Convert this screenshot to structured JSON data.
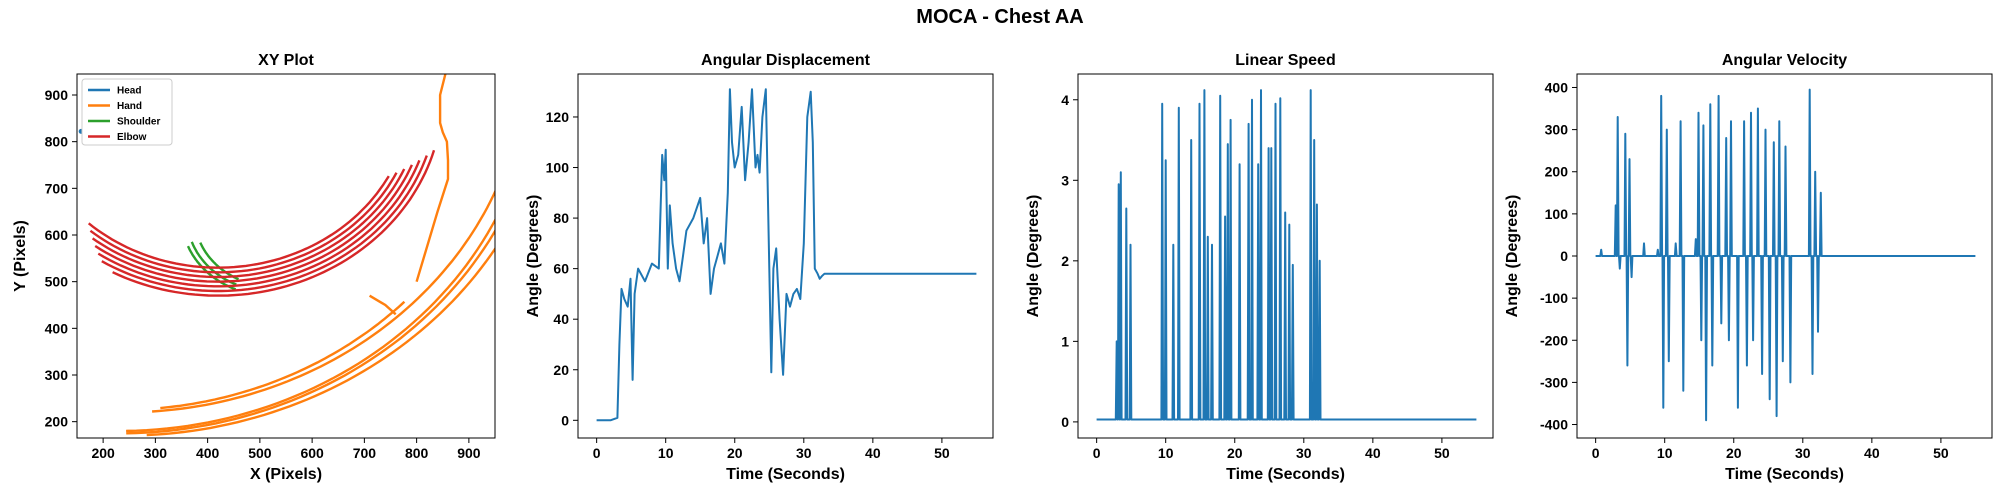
{
  "figure_title": "MOCA - Chest AA",
  "colors": {
    "Head": "#1f77b4",
    "Hand": "#ff7f0e",
    "Shoulder": "#2ca02c",
    "Elbow": "#d62728"
  },
  "chart_data": [
    {
      "type": "scatter",
      "title": "XY Plot",
      "xlabel": "X (Pixels)",
      "ylabel": "Y (Pixels)",
      "xlim": [
        150,
        950
      ],
      "ylim": [
        165,
        945
      ],
      "xticks": [
        200,
        300,
        400,
        500,
        600,
        700,
        800,
        900
      ],
      "yticks": [
        200,
        300,
        400,
        500,
        600,
        700,
        800,
        900
      ],
      "legend_position": "upper-left",
      "series": [
        {
          "name": "Head",
          "points": [
            [
              158,
              822
            ],
            [
              164,
              823
            ]
          ]
        },
        {
          "name": "Hand",
          "arcs": [
            {
              "cx": 230,
              "cy": 980,
              "r": 800,
              "a0": 89,
              "a1": 4
            },
            {
              "cx": 230,
              "cy": 990,
              "r": 815,
              "a0": 89,
              "a1": 8
            },
            {
              "cx": 240,
              "cy": 1000,
              "r": 830,
              "a0": 87,
              "a1": 14
            },
            {
              "cx": 240,
              "cy": 990,
              "r": 770,
              "a0": 86,
              "a1": 20
            },
            {
              "cx": 230,
              "cy": 985,
              "r": 760,
              "a0": 84,
              "a1": 44
            }
          ],
          "extra": [
            [
              [
                855,
                945
              ],
              [
                845,
                900
              ],
              [
                845,
                840
              ],
              [
                850,
                820
              ],
              [
                858,
                800
              ],
              [
                860,
                760
              ],
              [
                860,
                720
              ],
              [
                840,
                650
              ],
              [
                800,
                500
              ]
            ],
            [
              [
                710,
                470
              ],
              [
                740,
                450
              ],
              [
                760,
                430
              ]
            ]
          ]
        },
        {
          "name": "Shoulder",
          "arcs": [
            {
              "cx": 520,
              "cy": 640,
              "r": 170,
              "a0": 158,
              "a1": 113
            },
            {
              "cx": 520,
              "cy": 640,
              "r": 160,
              "a0": 160,
              "a1": 114
            },
            {
              "cx": 525,
              "cy": 640,
              "r": 150,
              "a0": 158,
              "a1": 116
            }
          ]
        },
        {
          "name": "Elbow",
          "arcs": [
            {
              "cx": 420,
              "cy": 900,
              "r": 430,
              "a0": 118,
              "a1": 16
            },
            {
              "cx": 420,
              "cy": 900,
              "r": 420,
              "a0": 122,
              "a1": 18
            },
            {
              "cx": 420,
              "cy": 900,
              "r": 410,
              "a0": 124,
              "a1": 20
            },
            {
              "cx": 420,
              "cy": 900,
              "r": 400,
              "a0": 126,
              "a1": 22
            },
            {
              "cx": 420,
              "cy": 900,
              "r": 390,
              "a0": 128,
              "a1": 24
            },
            {
              "cx": 420,
              "cy": 900,
              "r": 380,
              "a0": 130,
              "a1": 26
            },
            {
              "cx": 420,
              "cy": 900,
              "r": 370,
              "a0": 132,
              "a1": 28
            }
          ]
        }
      ]
    },
    {
      "type": "line",
      "title": "Angular Displacement",
      "xlabel": "Time (Seconds)",
      "ylabel": "Angle (Degrees)",
      "xlim": [
        -2.7,
        57.4
      ],
      "ylim": [
        -7,
        137
      ],
      "xticks": [
        0,
        10,
        20,
        30,
        40,
        50
      ],
      "yticks": [
        0,
        20,
        40,
        60,
        80,
        100,
        120
      ],
      "color": "#1f77b4",
      "x": [
        0,
        1,
        2,
        3,
        3.3,
        3.6,
        4.0,
        4.5,
        4.9,
        5.2,
        5.5,
        6,
        7,
        8,
        9,
        9.5,
        9.8,
        10.0,
        10.3,
        10.6,
        11,
        11.5,
        12,
        12.5,
        13,
        14,
        15,
        15.5,
        16,
        16.5,
        17,
        17.5,
        18,
        18.5,
        19,
        19.3,
        19.6,
        20,
        20.5,
        21,
        21.5,
        22,
        22.5,
        23,
        23.3,
        23.6,
        24,
        24.5,
        25,
        25.3,
        25.6,
        26,
        26.5,
        27,
        27.5,
        28,
        28.5,
        29,
        29.5,
        30,
        30.5,
        31,
        31.3,
        31.6,
        32,
        32.3,
        32.6,
        33,
        35,
        40,
        45,
        50,
        55
      ],
      "y": [
        0,
        0,
        0,
        1,
        30,
        52,
        48,
        45,
        56,
        16,
        50,
        60,
        55,
        62,
        60,
        105,
        95,
        107,
        60,
        85,
        70,
        60,
        55,
        65,
        75,
        80,
        88,
        70,
        80,
        50,
        60,
        65,
        70,
        62,
        90,
        131,
        110,
        100,
        105,
        124,
        95,
        110,
        131,
        100,
        105,
        98,
        120,
        131,
        60,
        19,
        60,
        68,
        40,
        18,
        50,
        45,
        50,
        52,
        48,
        70,
        120,
        130,
        110,
        60,
        58,
        56,
        57,
        58,
        58,
        58,
        58,
        58,
        58
      ]
    },
    {
      "type": "line",
      "title": "Linear Speed",
      "xlabel": "Time (Seconds)",
      "ylabel": "Angle (Degrees)",
      "xlim": [
        -2.7,
        57.4
      ],
      "ylim": [
        -0.2,
        4.32
      ],
      "xticks": [
        0,
        10,
        20,
        30,
        40,
        50
      ],
      "yticks": [
        0,
        1,
        2,
        3,
        4
      ],
      "color": "#1f77b4",
      "baseline": 0.03,
      "spikes": [
        [
          2.9,
          1.0
        ],
        [
          3.2,
          2.95
        ],
        [
          3.5,
          3.1
        ],
        [
          4.3,
          2.65
        ],
        [
          4.9,
          2.2
        ],
        [
          9.5,
          3.95
        ],
        [
          10.0,
          3.25
        ],
        [
          11.1,
          2.2
        ],
        [
          11.9,
          3.9
        ],
        [
          13.7,
          3.5
        ],
        [
          14.9,
          3.95
        ],
        [
          15.6,
          4.12
        ],
        [
          16.1,
          2.3
        ],
        [
          16.7,
          2.2
        ],
        [
          17.9,
          4.05
        ],
        [
          18.6,
          2.55
        ],
        [
          19.0,
          3.45
        ],
        [
          19.4,
          3.75
        ],
        [
          20.7,
          3.2
        ],
        [
          22.0,
          3.7
        ],
        [
          22.5,
          4.0
        ],
        [
          23.4,
          3.2
        ],
        [
          23.8,
          4.12
        ],
        [
          24.9,
          3.4
        ],
        [
          25.3,
          3.4
        ],
        [
          25.9,
          3.95
        ],
        [
          26.6,
          4.02
        ],
        [
          27.3,
          2.6
        ],
        [
          27.9,
          2.45
        ],
        [
          28.4,
          1.95
        ],
        [
          31.0,
          4.12
        ],
        [
          31.5,
          3.5
        ],
        [
          31.9,
          2.7
        ],
        [
          32.3,
          2.0
        ]
      ],
      "end_x": 55
    },
    {
      "type": "line",
      "title": "Angular Velocity",
      "xlabel": "Time (Seconds)",
      "ylabel": "Angle (Degrees)",
      "xlim": [
        -2.7,
        57.4
      ],
      "ylim": [
        -432,
        432
      ],
      "xticks": [
        0,
        10,
        20,
        30,
        40,
        50
      ],
      "yticks": [
        -400,
        -300,
        -200,
        -100,
        0,
        100,
        200,
        300,
        400
      ],
      "color": "#1f77b4",
      "baseline": 0,
      "spikes": [
        [
          0.8,
          15
        ],
        [
          2.9,
          120
        ],
        [
          3.2,
          330
        ],
        [
          3.5,
          -30
        ],
        [
          4.3,
          290
        ],
        [
          4.6,
          -260
        ],
        [
          4.9,
          230
        ],
        [
          5.2,
          -50
        ],
        [
          7.0,
          30
        ],
        [
          9.0,
          15
        ],
        [
          9.5,
          380
        ],
        [
          9.8,
          -360
        ],
        [
          10.3,
          300
        ],
        [
          10.6,
          -250
        ],
        [
          11.6,
          30
        ],
        [
          12.3,
          320
        ],
        [
          12.7,
          -320
        ],
        [
          14.5,
          40
        ],
        [
          14.9,
          340
        ],
        [
          15.3,
          -200
        ],
        [
          15.6,
          310
        ],
        [
          16.0,
          -390
        ],
        [
          16.6,
          360
        ],
        [
          16.9,
          -260
        ],
        [
          17.8,
          380
        ],
        [
          18.2,
          -160
        ],
        [
          18.9,
          280
        ],
        [
          19.3,
          -200
        ],
        [
          19.6,
          320
        ],
        [
          20.6,
          -360
        ],
        [
          21.5,
          320
        ],
        [
          21.9,
          -260
        ],
        [
          22.5,
          340
        ],
        [
          22.8,
          -200
        ],
        [
          23.5,
          350
        ],
        [
          24.1,
          -280
        ],
        [
          24.6,
          300
        ],
        [
          25.2,
          -340
        ],
        [
          25.8,
          270
        ],
        [
          26.2,
          -380
        ],
        [
          26.6,
          320
        ],
        [
          27.1,
          -250
        ],
        [
          27.5,
          260
        ],
        [
          28.2,
          -300
        ],
        [
          31.0,
          395
        ],
        [
          31.4,
          -280
        ],
        [
          31.8,
          200
        ],
        [
          32.2,
          -180
        ],
        [
          32.6,
          150
        ]
      ],
      "end_x": 55
    }
  ]
}
